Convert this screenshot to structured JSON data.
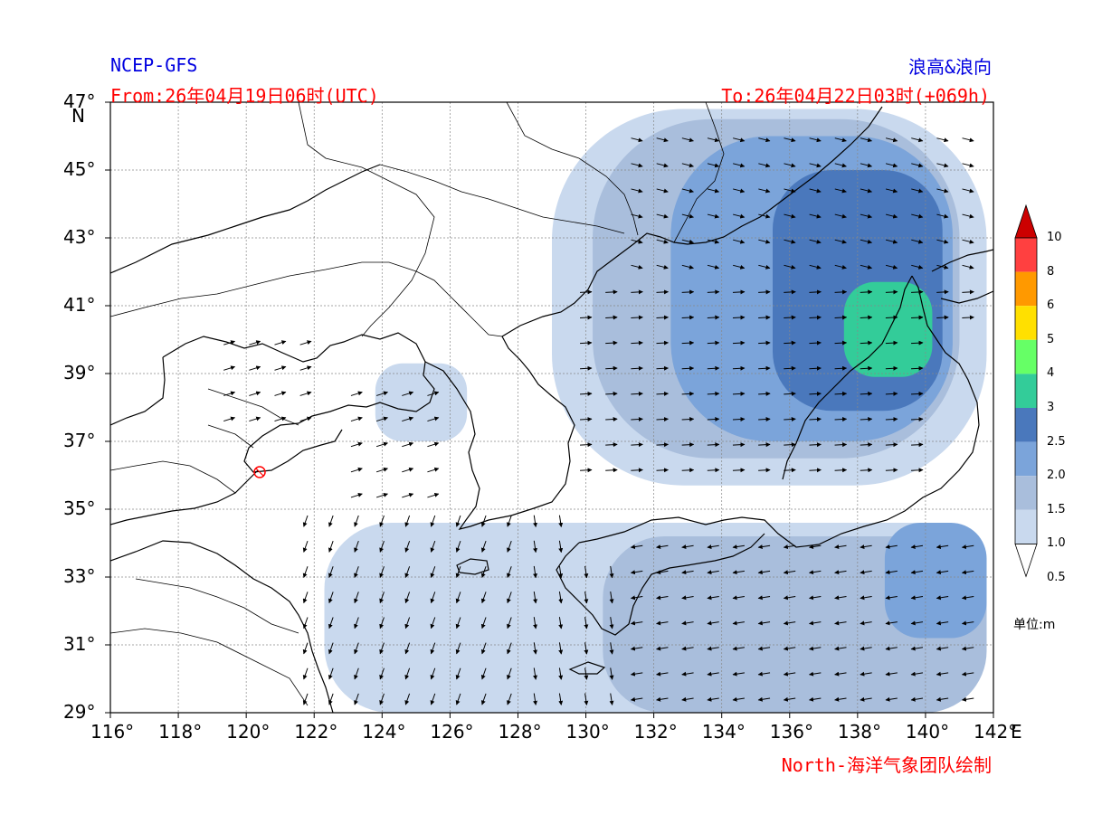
{
  "header": {
    "model": "NCEP-GFS",
    "product": "浪高&浪向",
    "from": "From:26年04月19日06时(UTC)",
    "to": "To:26年04月22日03时(+069h)",
    "credit": "North-海洋气象团队绘制"
  },
  "axes": {
    "lon_ticks": [
      "116°",
      "118°",
      "120°",
      "122°",
      "124°",
      "126°",
      "128°",
      "130°",
      "132°",
      "134°",
      "136°",
      "138°",
      "140°",
      "142°"
    ],
    "lat_ticks": [
      "47°",
      "45°",
      "43°",
      "41°",
      "39°",
      "37°",
      "35°",
      "33°",
      "31°",
      "29°"
    ],
    "lon_unit": "E",
    "lat_unit": "N",
    "lon_range": [
      116,
      142
    ],
    "lat_range": [
      29,
      47
    ]
  },
  "colorbar": {
    "labels": [
      "10",
      "8",
      "6",
      "5",
      "4",
      "3",
      "2.5",
      "2.0",
      "1.5",
      "1.0",
      "0.5"
    ],
    "colors": [
      "#cc0000",
      "#ff4040",
      "#ff9900",
      "#ffe000",
      "#66ff66",
      "#33cc99",
      "#4a78bc",
      "#7ba4da",
      "#a9bedc",
      "#c9d9ee",
      "#ffffff"
    ],
    "unit_label": "单位:m"
  },
  "chart_data": {
    "type": "heatmap",
    "variable": "wave height and direction",
    "levels_m": [
      0.5,
      1.0,
      1.5,
      2.0,
      2.5,
      3,
      4,
      5,
      6,
      8,
      10
    ],
    "regions": [
      {
        "band": "1.0-1.5",
        "lon": [
          122.3,
          141.8
        ],
        "lat": [
          29,
          34.6
        ]
      },
      {
        "band": "1.5-2.0",
        "lon": [
          130.5,
          141.8
        ],
        "lat": [
          29,
          34.2
        ]
      },
      {
        "band": "2.0-2.5",
        "lon": [
          138.8,
          141.8
        ],
        "lat": [
          31.2,
          34.6
        ]
      },
      {
        "band": "1.0-1.5",
        "lon": [
          123.8,
          126.5
        ],
        "lat": [
          37.0,
          39.3
        ]
      },
      {
        "band": "1.0-1.5",
        "lon": [
          129.0,
          141.8
        ],
        "lat": [
          35.7,
          46.8
        ]
      },
      {
        "band": "1.5-2.0",
        "lon": [
          130.2,
          141.0
        ],
        "lat": [
          36.5,
          46.5
        ]
      },
      {
        "band": "2.0-2.5",
        "lon": [
          132.5,
          140.8
        ],
        "lat": [
          37.0,
          46.0
        ]
      },
      {
        "band": "2.5-3",
        "lon": [
          135.5,
          140.5
        ],
        "lat": [
          37.9,
          45.0
        ]
      },
      {
        "band": "3-4",
        "lon": [
          137.6,
          140.2
        ],
        "lat": [
          38.9,
          41.7
        ]
      }
    ]
  }
}
